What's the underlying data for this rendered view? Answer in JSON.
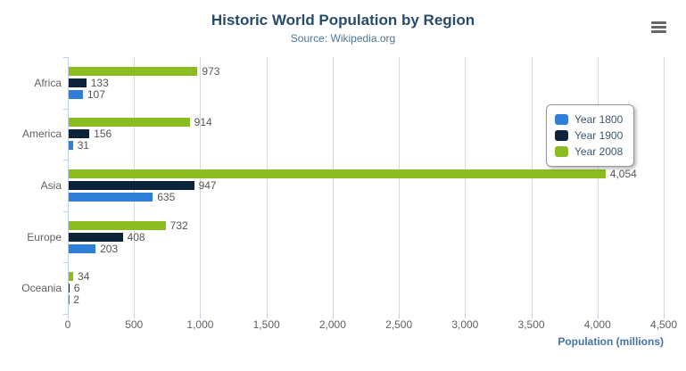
{
  "chart": {
    "title": "Historic World Population by Region",
    "subtitle": "Source: Wikipedia.org"
  },
  "icons": {
    "context_menu": "hamburger-menu"
  },
  "chart_data": {
    "type": "bar",
    "orientation": "horizontal",
    "title": "Historic World Population by Region",
    "subtitle": "Source: Wikipedia.org",
    "categories": [
      "Africa",
      "America",
      "Asia",
      "Europe",
      "Oceania"
    ],
    "series": [
      {
        "name": "Year 1800",
        "color": "#2f7ed8",
        "values": [
          107,
          31,
          635,
          203,
          2
        ]
      },
      {
        "name": "Year 1900",
        "color": "#0d233a",
        "values": [
          133,
          156,
          947,
          408,
          6
        ]
      },
      {
        "name": "Year 2008",
        "color": "#8bbc21",
        "values": [
          973,
          914,
          4054,
          732,
          34
        ]
      }
    ],
    "bar_order_top_to_bottom": [
      "Year 2008",
      "Year 1900",
      "Year 1800"
    ],
    "xlabel": "Population (millions)",
    "ylabel": "",
    "xlim": [
      0,
      4500
    ],
    "xticks": [
      "0",
      "500",
      "1,000",
      "1,500",
      "2,000",
      "2,500",
      "3,000",
      "3,500",
      "4,000",
      "4,500"
    ],
    "grid": true,
    "data_labels": true,
    "data_label_format": "thousands-comma",
    "legend_position": "right",
    "legend_entries": [
      "Year 1800",
      "Year 1900",
      "Year 2008"
    ]
  },
  "colors": {
    "title": "#274b6d",
    "subtitle": "#4d759e",
    "axis_title": "#4572a7",
    "axis_line": "#c0d0e0",
    "gridline": "#d8d8d8",
    "tick_labels": "#606060",
    "category_labels": "#606060",
    "data_labels": "#555555",
    "legend_text": "#3e576f",
    "legend_border": "#999999",
    "menu_icon": "#666666",
    "background": "#ffffff"
  }
}
